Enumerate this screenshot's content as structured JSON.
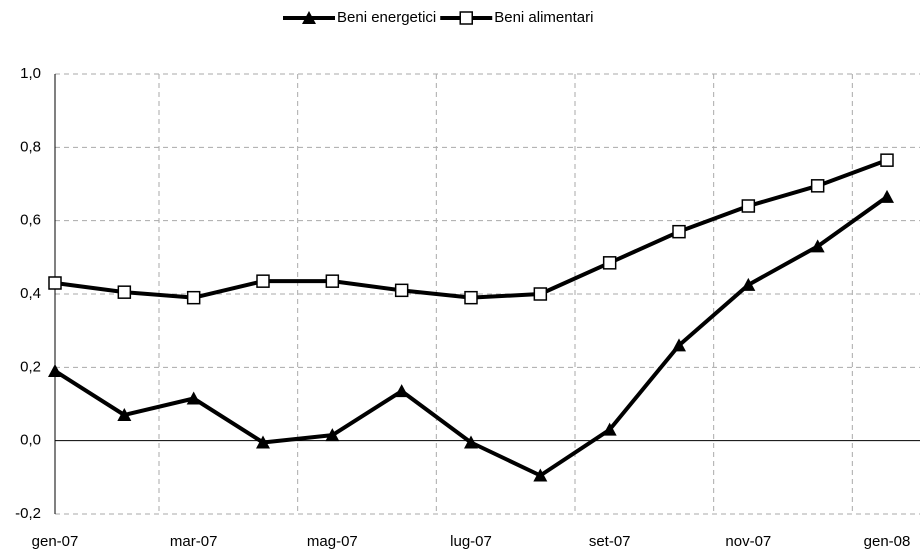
{
  "chart_data": {
    "type": "line",
    "categories": [
      "gen-07",
      null,
      "mar-07",
      null,
      "mag-07",
      null,
      "lug-07",
      null,
      "set-07",
      null,
      "nov-07",
      null,
      "gen-08"
    ],
    "series": [
      {
        "name": "Beni energetici",
        "color": "#000000",
        "marker": "triangle",
        "values": [
          0.19,
          0.07,
          0.115,
          -0.005,
          0.015,
          0.135,
          -0.005,
          -0.095,
          0.03,
          0.26,
          0.425,
          0.53,
          0.665
        ]
      },
      {
        "name": "Beni alimentari",
        "color": "#000000",
        "marker": "square",
        "values": [
          0.43,
          0.405,
          0.39,
          0.435,
          0.435,
          0.41,
          0.39,
          0.4,
          0.485,
          0.57,
          0.64,
          0.695,
          0.765
        ]
      }
    ],
    "ylim": [
      -0.2,
      1.0
    ],
    "yticks": [
      {
        "value": -0.2,
        "label": "-0,2"
      },
      {
        "value": 0,
        "label": "0,0"
      },
      {
        "value": 0.2,
        "label": "0,2"
      },
      {
        "value": 0.4,
        "label": "0,4"
      },
      {
        "value": 0.6,
        "label": "0,6"
      },
      {
        "value": 0.8,
        "label": "0,8"
      },
      {
        "value": 1.0,
        "label": "1,0"
      }
    ],
    "grid": true,
    "legend": "top"
  }
}
